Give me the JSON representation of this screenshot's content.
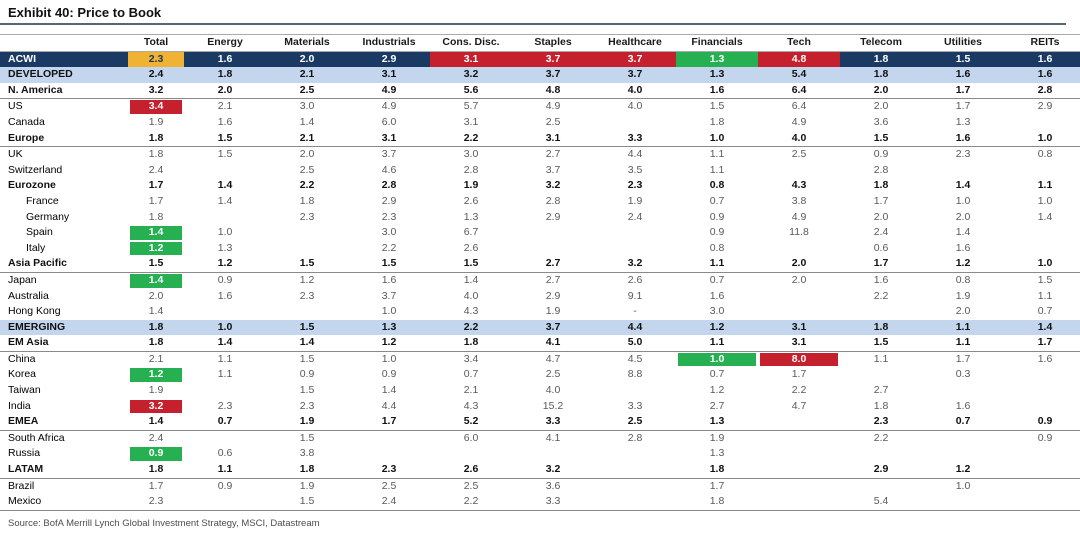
{
  "title": "Exhibit 40: Price to Book",
  "source": "Source: BofA Merrill Lynch Global Investment Strategy, MSCI, Datastream",
  "colors": {
    "navy": "#1b3a63",
    "red": "#c5202e",
    "green": "#26b052",
    "orange": "#f0b232",
    "band_blue": "#c3d6ee",
    "orange_text": "#17375d"
  },
  "chart_data": {
    "type": "table",
    "columns": [
      "Total",
      "Energy",
      "Materials",
      "Industrials",
      "Cons. Disc.",
      "Staples",
      "Healthcare",
      "Financials",
      "Tech",
      "Telecom",
      "Utilities",
      "REITs"
    ],
    "rows": [
      {
        "label": "ACWI",
        "style": "acwi",
        "sep": false,
        "values": [
          "2.3",
          "1.6",
          "2.0",
          "2.9",
          "3.1",
          "3.7",
          "3.7",
          "1.3",
          "4.8",
          "1.8",
          "1.5",
          "1.6"
        ],
        "hl": {
          "0": "orange",
          "1": "navy",
          "2": "navy",
          "3": "navy",
          "4": "red",
          "5": "red",
          "6": "red",
          "7": "green",
          "8": "red",
          "9": "navy",
          "10": "navy",
          "11": "navy"
        }
      },
      {
        "label": "DEVELOPED",
        "style": "band",
        "sep": false,
        "values": [
          "2.4",
          "1.8",
          "2.1",
          "3.1",
          "3.2",
          "3.7",
          "3.7",
          "1.3",
          "5.4",
          "1.8",
          "1.6",
          "1.6"
        ],
        "hl": {}
      },
      {
        "label": "N. America",
        "style": "bold",
        "sep": true,
        "values": [
          "3.2",
          "2.0",
          "2.5",
          "4.9",
          "5.6",
          "4.8",
          "4.0",
          "1.6",
          "6.4",
          "2.0",
          "1.7",
          "2.8"
        ],
        "hl": {}
      },
      {
        "label": "US",
        "style": "normal",
        "sep": false,
        "values": [
          "3.4",
          "2.1",
          "3.0",
          "4.9",
          "5.7",
          "4.9",
          "4.0",
          "1.5",
          "6.4",
          "2.0",
          "1.7",
          "2.9"
        ],
        "hl": {
          "0": "red"
        }
      },
      {
        "label": "Canada",
        "style": "normal",
        "sep": false,
        "values": [
          "1.9",
          "1.6",
          "1.4",
          "6.0",
          "3.1",
          "2.5",
          "",
          "1.8",
          "4.9",
          "3.6",
          "1.3",
          ""
        ],
        "hl": {}
      },
      {
        "label": "Europe",
        "style": "bold",
        "sep": true,
        "values": [
          "1.8",
          "1.5",
          "2.1",
          "3.1",
          "2.2",
          "3.1",
          "3.3",
          "1.0",
          "4.0",
          "1.5",
          "1.6",
          "1.0"
        ],
        "hl": {}
      },
      {
        "label": "UK",
        "style": "normal",
        "sep": false,
        "values": [
          "1.8",
          "1.5",
          "2.0",
          "3.7",
          "3.0",
          "2.7",
          "4.4",
          "1.1",
          "2.5",
          "0.9",
          "2.3",
          "0.8"
        ],
        "hl": {}
      },
      {
        "label": "Switzerland",
        "style": "normal",
        "sep": false,
        "values": [
          "2.4",
          "",
          "2.5",
          "4.6",
          "2.8",
          "3.7",
          "3.5",
          "1.1",
          "",
          "2.8",
          "",
          ""
        ],
        "hl": {}
      },
      {
        "label": "Eurozone",
        "style": "bold",
        "sep": false,
        "values": [
          "1.7",
          "1.4",
          "2.2",
          "2.8",
          "1.9",
          "3.2",
          "2.3",
          "0.8",
          "4.3",
          "1.8",
          "1.4",
          "1.1"
        ],
        "hl": {}
      },
      {
        "label": "France",
        "style": "indent",
        "sep": false,
        "values": [
          "1.7",
          "1.4",
          "1.8",
          "2.9",
          "2.6",
          "2.8",
          "1.9",
          "0.7",
          "3.8",
          "1.7",
          "1.0",
          "1.0"
        ],
        "hl": {}
      },
      {
        "label": "Germany",
        "style": "indent",
        "sep": false,
        "values": [
          "1.8",
          "",
          "2.3",
          "2.3",
          "1.3",
          "2.9",
          "2.4",
          "0.9",
          "4.9",
          "2.0",
          "2.0",
          "1.4"
        ],
        "hl": {}
      },
      {
        "label": "Spain",
        "style": "indent",
        "sep": false,
        "values": [
          "1.4",
          "1.0",
          "",
          "3.0",
          "6.7",
          "",
          "",
          "0.9",
          "11.8",
          "2.4",
          "1.4",
          ""
        ],
        "hl": {
          "0": "green"
        }
      },
      {
        "label": "Italy",
        "style": "indent",
        "sep": false,
        "values": [
          "1.2",
          "1.3",
          "",
          "2.2",
          "2.6",
          "",
          "",
          "0.8",
          "",
          "0.6",
          "1.6",
          ""
        ],
        "hl": {
          "0": "green"
        }
      },
      {
        "label": "Asia Pacific",
        "style": "bold",
        "sep": true,
        "values": [
          "1.5",
          "1.2",
          "1.5",
          "1.5",
          "1.5",
          "2.7",
          "3.2",
          "1.1",
          "2.0",
          "1.7",
          "1.2",
          "1.0"
        ],
        "hl": {}
      },
      {
        "label": "Japan",
        "style": "normal",
        "sep": false,
        "values": [
          "1.4",
          "0.9",
          "1.2",
          "1.6",
          "1.4",
          "2.7",
          "2.6",
          "0.7",
          "2.0",
          "1.6",
          "0.8",
          "1.5"
        ],
        "hl": {
          "0": "green"
        }
      },
      {
        "label": "Australia",
        "style": "normal",
        "sep": false,
        "values": [
          "2.0",
          "1.6",
          "2.3",
          "3.7",
          "4.0",
          "2.9",
          "9.1",
          "1.6",
          "",
          "2.2",
          "1.9",
          "1.1"
        ],
        "hl": {}
      },
      {
        "label": "Hong Kong",
        "style": "normal",
        "sep": false,
        "values": [
          "1.4",
          "",
          "",
          "1.0",
          "4.3",
          "1.9",
          "-",
          "3.0",
          "",
          "",
          "2.0",
          "0.7"
        ],
        "hl": {}
      },
      {
        "label": "EMERGING",
        "style": "band",
        "sep": false,
        "values": [
          "1.8",
          "1.0",
          "1.5",
          "1.3",
          "2.2",
          "3.7",
          "4.4",
          "1.2",
          "3.1",
          "1.8",
          "1.1",
          "1.4"
        ],
        "hl": {}
      },
      {
        "label": "EM Asia",
        "style": "bold",
        "sep": true,
        "values": [
          "1.8",
          "1.4",
          "1.4",
          "1.2",
          "1.8",
          "4.1",
          "5.0",
          "1.1",
          "3.1",
          "1.5",
          "1.1",
          "1.7"
        ],
        "hl": {}
      },
      {
        "label": "China",
        "style": "normal",
        "sep": false,
        "values": [
          "2.1",
          "1.1",
          "1.5",
          "1.0",
          "3.4",
          "4.7",
          "4.5",
          "1.0",
          "8.0",
          "1.1",
          "1.7",
          "1.6"
        ],
        "hl": {
          "7": "green",
          "8": "red"
        }
      },
      {
        "label": "Korea",
        "style": "normal",
        "sep": false,
        "values": [
          "1.2",
          "1.1",
          "0.9",
          "0.9",
          "0.7",
          "2.5",
          "8.8",
          "0.7",
          "1.7",
          "",
          "0.3",
          ""
        ],
        "hl": {
          "0": "green"
        }
      },
      {
        "label": "Taiwan",
        "style": "normal",
        "sep": false,
        "values": [
          "1.9",
          "",
          "1.5",
          "1.4",
          "2.1",
          "4.0",
          "",
          "1.2",
          "2.2",
          "2.7",
          "",
          ""
        ],
        "hl": {}
      },
      {
        "label": "India",
        "style": "normal",
        "sep": false,
        "values": [
          "3.2",
          "2.3",
          "2.3",
          "4.4",
          "4.3",
          "15.2",
          "3.3",
          "2.7",
          "4.7",
          "1.8",
          "1.6",
          ""
        ],
        "hl": {
          "0": "red"
        }
      },
      {
        "label": "EMEA",
        "style": "bold",
        "sep": true,
        "values": [
          "1.4",
          "0.7",
          "1.9",
          "1.7",
          "5.2",
          "3.3",
          "2.5",
          "1.3",
          "",
          "2.3",
          "0.7",
          "0.9"
        ],
        "hl": {}
      },
      {
        "label": "South Africa",
        "style": "normal",
        "sep": false,
        "values": [
          "2.4",
          "",
          "1.5",
          "",
          "6.0",
          "4.1",
          "2.8",
          "1.9",
          "",
          "2.2",
          "",
          "0.9"
        ],
        "hl": {}
      },
      {
        "label": "Russia",
        "style": "normal",
        "sep": false,
        "values": [
          "0.9",
          "0.6",
          "3.8",
          "",
          "",
          "",
          "",
          "1.3",
          "",
          "",
          "",
          ""
        ],
        "hl": {
          "0": "green"
        }
      },
      {
        "label": "LATAM",
        "style": "bold",
        "sep": true,
        "values": [
          "1.8",
          "1.1",
          "1.8",
          "2.3",
          "2.6",
          "3.2",
          "",
          "1.8",
          "",
          "2.9",
          "1.2",
          ""
        ],
        "hl": {}
      },
      {
        "label": "Brazil",
        "style": "normal",
        "sep": false,
        "values": [
          "1.7",
          "0.9",
          "1.9",
          "2.5",
          "2.5",
          "3.6",
          "",
          "1.7",
          "",
          "",
          "1.0",
          ""
        ],
        "hl": {}
      },
      {
        "label": "Mexico",
        "style": "normal",
        "sep": true,
        "values": [
          "2.3",
          "",
          "1.5",
          "2.4",
          "2.2",
          "3.3",
          "",
          "1.8",
          "",
          "5.4",
          "",
          ""
        ],
        "hl": {}
      }
    ]
  }
}
